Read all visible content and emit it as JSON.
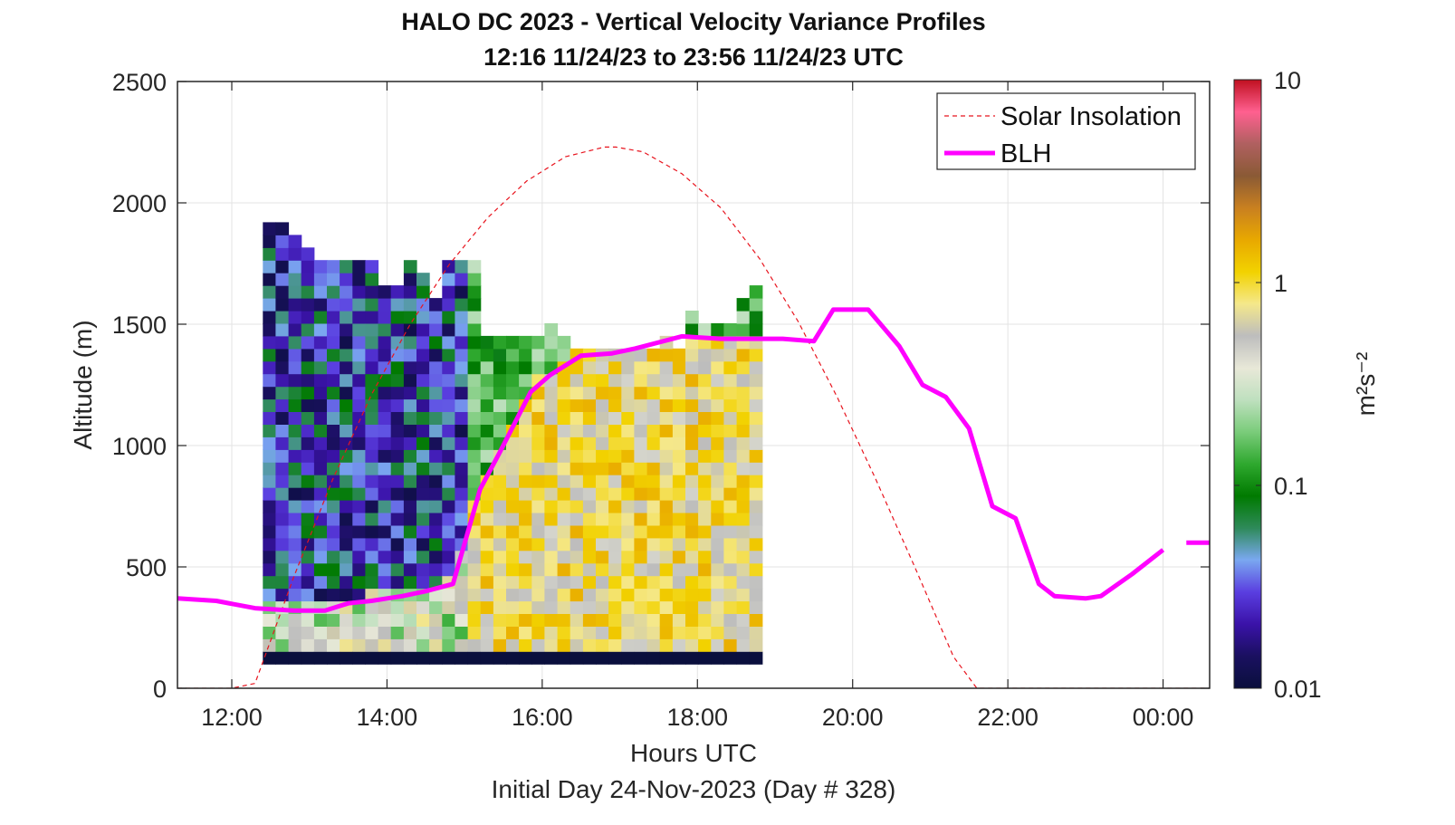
{
  "chart_data": {
    "type": "heatmap",
    "title": "HALO DC 2023 - Vertical Velocity Variance Profiles",
    "subtitle": "12:16 11/24/23 to 23:56 11/24/23  UTC",
    "xlabel": "Hours UTC",
    "footer": "Initial Day 24-Nov-2023 (Day # 328)",
    "ylabel": "Altitude (m)",
    "colorbar_label": "m²s⁻²",
    "xlim_hours": [
      11.3,
      24.6
    ],
    "ylim": [
      0,
      2500
    ],
    "x_ticks": [
      {
        "value": 12,
        "label": "12:00"
      },
      {
        "value": 14,
        "label": "14:00"
      },
      {
        "value": 16,
        "label": "16:00"
      },
      {
        "value": 18,
        "label": "18:00"
      },
      {
        "value": 20,
        "label": "20:00"
      },
      {
        "value": 22,
        "label": "22:00"
      },
      {
        "value": 24,
        "label": "00:00"
      }
    ],
    "y_ticks": [
      0,
      500,
      1000,
      1500,
      2000,
      2500
    ],
    "colorbar": {
      "scale": "log",
      "range": [
        0.01,
        10
      ],
      "ticks": [
        {
          "value": 0.01,
          "label": "0.01"
        },
        {
          "value": 0.1,
          "label": "0.1"
        },
        {
          "value": 1,
          "label": "1"
        },
        {
          "value": 10,
          "label": "10"
        }
      ],
      "stops": [
        "#0a0f3d",
        "#1a1060",
        "#3a12a8",
        "#5a3ee0",
        "#7aa8f0",
        "#2e8a5a",
        "#007a00",
        "#2ea82e",
        "#7acc7a",
        "#bfe0bf",
        "#e8e8d8",
        "#bdbdbd",
        "#f5e88a",
        "#f2d200",
        "#e8a800",
        "#c98020",
        "#8a5a35",
        "#b06060",
        "#ff6090",
        "#c01020"
      ]
    },
    "heatmap_grid": {
      "time_start": 12.4,
      "time_step": 0.165,
      "alt_start": 100,
      "alt_step": 52
    },
    "heatmap_tops": [
      1970,
      1920,
      1910,
      1830,
      1770,
      1770,
      1770,
      1770,
      1770,
      1700,
      1700,
      1770,
      1720,
      1640,
      1770,
      1770,
      1770,
      1500,
      1490,
      1490,
      1500,
      1500,
      1530,
      1490,
      1450,
      1400,
      1430,
      1430,
      1430,
      1430,
      1430,
      1500,
      1430,
      1570,
      1550,
      1550,
      1530,
      1640,
      1670
    ],
    "series": [
      {
        "name": "Solar Insolation",
        "color": "#e8141e",
        "x": [
          11.3,
          12.0,
          12.3,
          12.8,
          13.3,
          13.8,
          14.3,
          14.8,
          15.3,
          15.8,
          16.3,
          16.8,
          16.95,
          17.3,
          17.8,
          18.3,
          18.8,
          19.3,
          19.8,
          20.3,
          20.8,
          21.3,
          21.6,
          21.8,
          24.6
        ],
        "y": [
          0,
          0,
          20,
          460,
          860,
          1210,
          1500,
          1745,
          1940,
          2090,
          2190,
          2230,
          2230,
          2210,
          2120,
          1980,
          1770,
          1510,
          1200,
          860,
          500,
          130,
          0,
          0,
          0
        ]
      },
      {
        "name": "BLH",
        "color": "#ff00ff",
        "x": [
          11.3,
          11.8,
          12.3,
          12.8,
          13.2,
          13.5,
          13.8,
          14.2,
          14.5,
          14.85,
          15.2,
          15.45,
          15.85,
          16.1,
          16.5,
          16.9,
          17.2,
          17.8,
          18.3,
          18.8,
          19.1,
          19.5,
          19.75,
          20.2,
          20.6,
          20.9,
          21.2,
          21.5,
          21.8,
          22.1,
          22.4,
          22.6,
          23.0,
          23.2,
          23.6,
          24.0
        ],
        "y": [
          370,
          360,
          330,
          320,
          320,
          350,
          360,
          380,
          400,
          430,
          820,
          970,
          1220,
          1290,
          1370,
          1380,
          1400,
          1450,
          1440,
          1440,
          1440,
          1430,
          1560,
          1560,
          1410,
          1250,
          1200,
          1070,
          750,
          700,
          430,
          380,
          370,
          380,
          470,
          570
        ]
      }
    ],
    "blh_outlier": {
      "x": [
        24.3,
        24.6
      ],
      "y": [
        600,
        600
      ]
    },
    "legend": {
      "position": "top-right"
    },
    "grid": true
  }
}
